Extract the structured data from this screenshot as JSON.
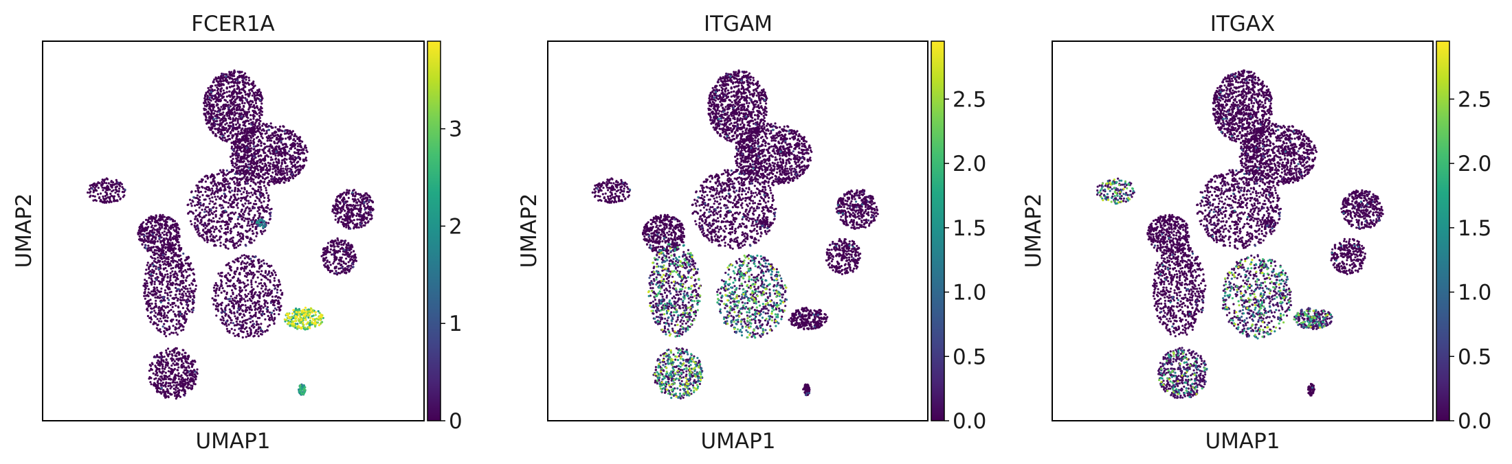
{
  "chart_data": [
    {
      "type": "scatter",
      "title": "FCER1A",
      "xlabel": "UMAP1",
      "ylabel": "UMAP2",
      "colormap": "viridis",
      "grid": false,
      "colorbar": {
        "min": 0,
        "max": 3.9,
        "ticks": [
          0,
          1,
          2,
          3
        ],
        "tick_labels": [
          "0",
          "1",
          "2",
          "3"
        ]
      },
      "clusters": [
        {
          "cx": 2.0,
          "cy": 6.3,
          "rx": 0.55,
          "ry": 0.35,
          "n": 160,
          "mean": 0.0
        },
        {
          "cx": 5.6,
          "cy": 8.6,
          "rx": 0.85,
          "ry": 1.0,
          "n": 900,
          "mean": 0.02
        },
        {
          "cx": 6.6,
          "cy": 7.3,
          "rx": 1.1,
          "ry": 0.85,
          "n": 900,
          "mean": 0.02
        },
        {
          "cx": 5.5,
          "cy": 5.8,
          "rx": 1.2,
          "ry": 1.1,
          "n": 800,
          "mean": 0.02
        },
        {
          "cx": 3.5,
          "cy": 5.1,
          "rx": 0.6,
          "ry": 0.55,
          "n": 350,
          "mean": 0.02
        },
        {
          "cx": 3.8,
          "cy": 3.6,
          "rx": 0.75,
          "ry": 1.3,
          "n": 650,
          "mean": 0.02
        },
        {
          "cx": 3.9,
          "cy": 1.3,
          "rx": 0.7,
          "ry": 0.7,
          "n": 450,
          "mean": 0.02
        },
        {
          "cx": 6.0,
          "cy": 3.4,
          "rx": 1.0,
          "ry": 1.15,
          "n": 650,
          "mean": 0.02
        },
        {
          "cx": 7.6,
          "cy": 2.8,
          "rx": 0.55,
          "ry": 0.3,
          "n": 240,
          "mean": 3.1
        },
        {
          "cx": 7.55,
          "cy": 0.85,
          "rx": 0.1,
          "ry": 0.16,
          "n": 60,
          "mean": 2.0
        },
        {
          "cx": 9.0,
          "cy": 5.8,
          "rx": 0.6,
          "ry": 0.55,
          "n": 350,
          "mean": 0.02
        },
        {
          "cx": 8.6,
          "cy": 4.5,
          "rx": 0.5,
          "ry": 0.5,
          "n": 250,
          "mean": 0.02
        },
        {
          "cx": 6.4,
          "cy": 5.4,
          "rx": 0.15,
          "ry": 0.12,
          "n": 25,
          "mean": 1.6
        }
      ]
    },
    {
      "type": "scatter",
      "title": "ITGAM",
      "xlabel": "UMAP1",
      "ylabel": "UMAP2",
      "colormap": "viridis",
      "grid": false,
      "colorbar": {
        "min": 0,
        "max": 2.95,
        "ticks": [
          0,
          0.5,
          1,
          1.5,
          2,
          2.5
        ],
        "tick_labels": [
          "0.0",
          "0.5",
          "1.0",
          "1.5",
          "2.0",
          "2.5"
        ]
      },
      "clusters": [
        {
          "cx": 2.0,
          "cy": 6.3,
          "rx": 0.55,
          "ry": 0.35,
          "n": 160,
          "mean": 0.1
        },
        {
          "cx": 5.6,
          "cy": 8.6,
          "rx": 0.85,
          "ry": 1.0,
          "n": 900,
          "mean": 0.06
        },
        {
          "cx": 6.6,
          "cy": 7.3,
          "rx": 1.1,
          "ry": 0.85,
          "n": 900,
          "mean": 0.06
        },
        {
          "cx": 5.5,
          "cy": 5.8,
          "rx": 1.2,
          "ry": 1.1,
          "n": 800,
          "mean": 0.08
        },
        {
          "cx": 3.5,
          "cy": 5.1,
          "rx": 0.6,
          "ry": 0.55,
          "n": 350,
          "mean": 0.1
        },
        {
          "cx": 3.8,
          "cy": 3.6,
          "rx": 0.75,
          "ry": 1.3,
          "n": 650,
          "mean": 0.9
        },
        {
          "cx": 3.9,
          "cy": 1.3,
          "rx": 0.7,
          "ry": 0.7,
          "n": 450,
          "mean": 1.4
        },
        {
          "cx": 6.0,
          "cy": 3.4,
          "rx": 1.0,
          "ry": 1.15,
          "n": 650,
          "mean": 1.2
        },
        {
          "cx": 7.6,
          "cy": 2.8,
          "rx": 0.55,
          "ry": 0.3,
          "n": 240,
          "mean": 0.1
        },
        {
          "cx": 7.55,
          "cy": 0.85,
          "rx": 0.1,
          "ry": 0.16,
          "n": 60,
          "mean": 0.05
        },
        {
          "cx": 9.0,
          "cy": 5.8,
          "rx": 0.6,
          "ry": 0.55,
          "n": 350,
          "mean": 0.1
        },
        {
          "cx": 8.6,
          "cy": 4.5,
          "rx": 0.5,
          "ry": 0.5,
          "n": 250,
          "mean": 0.1
        },
        {
          "cx": 6.4,
          "cy": 5.4,
          "rx": 0.15,
          "ry": 0.12,
          "n": 25,
          "mean": 0.1
        }
      ]
    },
    {
      "type": "scatter",
      "title": "ITGAX",
      "xlabel": "UMAP1",
      "ylabel": "UMAP2",
      "colormap": "viridis",
      "grid": false,
      "colorbar": {
        "min": 0,
        "max": 2.95,
        "ticks": [
          0,
          0.5,
          1,
          1.5,
          2,
          2.5
        ],
        "tick_labels": [
          "0.0",
          "0.5",
          "1.0",
          "1.5",
          "2.0",
          "2.5"
        ]
      },
      "clusters": [
        {
          "cx": 2.0,
          "cy": 6.3,
          "rx": 0.55,
          "ry": 0.35,
          "n": 160,
          "mean": 1.3
        },
        {
          "cx": 5.6,
          "cy": 8.6,
          "rx": 0.85,
          "ry": 1.0,
          "n": 900,
          "mean": 0.05
        },
        {
          "cx": 6.6,
          "cy": 7.3,
          "rx": 1.1,
          "ry": 0.85,
          "n": 900,
          "mean": 0.05
        },
        {
          "cx": 5.5,
          "cy": 5.8,
          "rx": 1.2,
          "ry": 1.1,
          "n": 800,
          "mean": 0.06
        },
        {
          "cx": 3.5,
          "cy": 5.1,
          "rx": 0.6,
          "ry": 0.55,
          "n": 350,
          "mean": 0.06
        },
        {
          "cx": 3.8,
          "cy": 3.6,
          "rx": 0.75,
          "ry": 1.3,
          "n": 650,
          "mean": 0.15
        },
        {
          "cx": 3.9,
          "cy": 1.3,
          "rx": 0.7,
          "ry": 0.7,
          "n": 450,
          "mean": 0.6
        },
        {
          "cx": 6.0,
          "cy": 3.4,
          "rx": 1.0,
          "ry": 1.15,
          "n": 650,
          "mean": 0.9
        },
        {
          "cx": 7.6,
          "cy": 2.8,
          "rx": 0.55,
          "ry": 0.3,
          "n": 240,
          "mean": 0.8
        },
        {
          "cx": 7.55,
          "cy": 0.85,
          "rx": 0.1,
          "ry": 0.16,
          "n": 60,
          "mean": 0.05
        },
        {
          "cx": 9.0,
          "cy": 5.8,
          "rx": 0.6,
          "ry": 0.55,
          "n": 350,
          "mean": 0.05
        },
        {
          "cx": 8.6,
          "cy": 4.5,
          "rx": 0.5,
          "ry": 0.5,
          "n": 250,
          "mean": 0.05
        },
        {
          "cx": 6.4,
          "cy": 5.4,
          "rx": 0.15,
          "ry": 0.12,
          "n": 25,
          "mean": 0.05
        }
      ]
    }
  ]
}
